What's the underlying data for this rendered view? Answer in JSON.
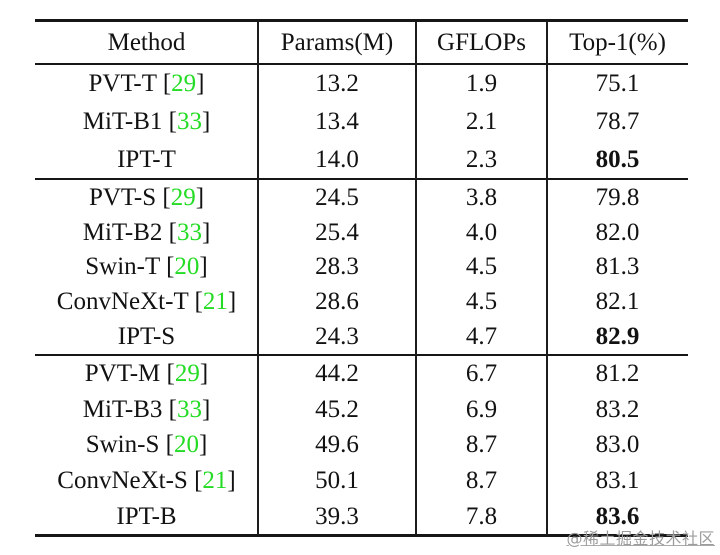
{
  "colors": {
    "citation_green": "#23dc23",
    "rule_black": "#161616",
    "text": "#121212",
    "watermark_gray": "#9c9c9c",
    "background": "#ffffff"
  },
  "watermark": {
    "text": "@稀土掘金技术社区"
  },
  "table": {
    "headers": [
      "Method",
      "Params(M)",
      "GFLOPs",
      "Top-1(%)"
    ],
    "sections": [
      {
        "rows": [
          {
            "method": "PVT-T",
            "ref": "29",
            "params": "13.2",
            "gflops": "1.9",
            "top1": "75.1",
            "top1_bold": false
          },
          {
            "method": "MiT-B1",
            "ref": "33",
            "params": "13.4",
            "gflops": "2.1",
            "top1": "78.7",
            "top1_bold": false
          },
          {
            "method": "IPT-T",
            "ref": "",
            "params": "14.0",
            "gflops": "2.3",
            "top1": "80.5",
            "top1_bold": true
          }
        ]
      },
      {
        "rows": [
          {
            "method": "PVT-S",
            "ref": "29",
            "params": "24.5",
            "gflops": "3.8",
            "top1": "79.8",
            "top1_bold": false
          },
          {
            "method": "MiT-B2",
            "ref": "33",
            "params": "25.4",
            "gflops": "4.0",
            "top1": "82.0",
            "top1_bold": false
          },
          {
            "method": "Swin-T",
            "ref": "20",
            "params": "28.3",
            "gflops": "4.5",
            "top1": "81.3",
            "top1_bold": false
          },
          {
            "method": "ConvNeXt-T",
            "ref": "21",
            "params": "28.6",
            "gflops": "4.5",
            "top1": "82.1",
            "top1_bold": false
          },
          {
            "method": "IPT-S",
            "ref": "",
            "params": "24.3",
            "gflops": "4.7",
            "top1": "82.9",
            "top1_bold": true
          }
        ]
      },
      {
        "rows": [
          {
            "method": "PVT-M",
            "ref": "29",
            "params": "44.2",
            "gflops": "6.7",
            "top1": "81.2",
            "top1_bold": false
          },
          {
            "method": "MiT-B3",
            "ref": "33",
            "params": "45.2",
            "gflops": "6.9",
            "top1": "83.2",
            "top1_bold": false
          },
          {
            "method": "Swin-S",
            "ref": "20",
            "params": "49.6",
            "gflops": "8.7",
            "top1": "83.0",
            "top1_bold": false
          },
          {
            "method": "ConvNeXt-S",
            "ref": "21",
            "params": "50.1",
            "gflops": "8.7",
            "top1": "83.1",
            "top1_bold": false
          },
          {
            "method": "IPT-B",
            "ref": "",
            "params": "39.3",
            "gflops": "7.8",
            "top1": "83.6",
            "top1_bold": true
          }
        ]
      }
    ]
  }
}
